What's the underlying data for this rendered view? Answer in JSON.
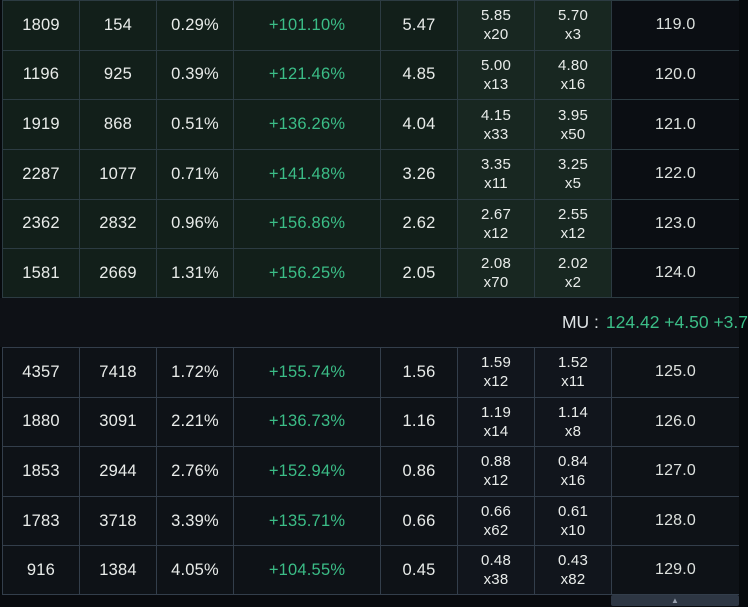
{
  "colors": {
    "accent_green": "#3bbd87"
  },
  "chain": {
    "sections": [
      {
        "name": "above-money",
        "rows": [
          {
            "volume": "1809",
            "open_interest": "154",
            "percent": "0.29%",
            "change_percent": "+101.10%",
            "last": "5.47",
            "bid": "5.85",
            "bid_size": "x20",
            "ask": "5.70",
            "ask_size": "x3",
            "strike": "119.0"
          },
          {
            "volume": "1196",
            "open_interest": "925",
            "percent": "0.39%",
            "change_percent": "+121.46%",
            "last": "4.85",
            "bid": "5.00",
            "bid_size": "x13",
            "ask": "4.80",
            "ask_size": "x16",
            "strike": "120.0"
          },
          {
            "volume": "1919",
            "open_interest": "868",
            "percent": "0.51%",
            "change_percent": "+136.26%",
            "last": "4.04",
            "bid": "4.15",
            "bid_size": "x33",
            "ask": "3.95",
            "ask_size": "x50",
            "strike": "121.0"
          },
          {
            "volume": "2287",
            "open_interest": "1077",
            "percent": "0.71%",
            "change_percent": "+141.48%",
            "last": "3.26",
            "bid": "3.35",
            "bid_size": "x11",
            "ask": "3.25",
            "ask_size": "x5",
            "strike": "122.0"
          },
          {
            "volume": "2362",
            "open_interest": "2832",
            "percent": "0.96%",
            "change_percent": "+156.86%",
            "last": "2.62",
            "bid": "2.67",
            "bid_size": "x12",
            "ask": "2.55",
            "ask_size": "x12",
            "strike": "123.0"
          },
          {
            "volume": "1581",
            "open_interest": "2669",
            "percent": "1.31%",
            "change_percent": "+156.25%",
            "last": "2.05",
            "bid": "2.08",
            "bid_size": "x70",
            "ask": "2.02",
            "ask_size": "x2",
            "strike": "124.0"
          }
        ]
      },
      {
        "name": "below-money",
        "rows": [
          {
            "volume": "4357",
            "open_interest": "7418",
            "percent": "1.72%",
            "change_percent": "+155.74%",
            "last": "1.56",
            "bid": "1.59",
            "bid_size": "x12",
            "ask": "1.52",
            "ask_size": "x11",
            "strike": "125.0"
          },
          {
            "volume": "1880",
            "open_interest": "3091",
            "percent": "2.21%",
            "change_percent": "+136.73%",
            "last": "1.16",
            "bid": "1.19",
            "bid_size": "x14",
            "ask": "1.14",
            "ask_size": "x8",
            "strike": "126.0"
          },
          {
            "volume": "1853",
            "open_interest": "2944",
            "percent": "2.76%",
            "change_percent": "+152.94%",
            "last": "0.86",
            "bid": "0.88",
            "bid_size": "x12",
            "ask": "0.84",
            "ask_size": "x16",
            "strike": "127.0"
          },
          {
            "volume": "1783",
            "open_interest": "3718",
            "percent": "3.39%",
            "change_percent": "+135.71%",
            "last": "0.66",
            "bid": "0.66",
            "bid_size": "x62",
            "ask": "0.61",
            "ask_size": "x10",
            "strike": "128.0"
          },
          {
            "volume": "916",
            "open_interest": "1384",
            "percent": "4.05%",
            "change_percent": "+104.55%",
            "last": "0.45",
            "bid": "0.48",
            "bid_size": "x38",
            "ask": "0.43",
            "ask_size": "x82",
            "strike": "129.0"
          }
        ]
      }
    ],
    "quote_bar": {
      "symbol_label": "MU :",
      "quote_text": "124.42 +4.50 +3.7"
    }
  },
  "scrollbar": {
    "arrow_icon": "▲"
  }
}
